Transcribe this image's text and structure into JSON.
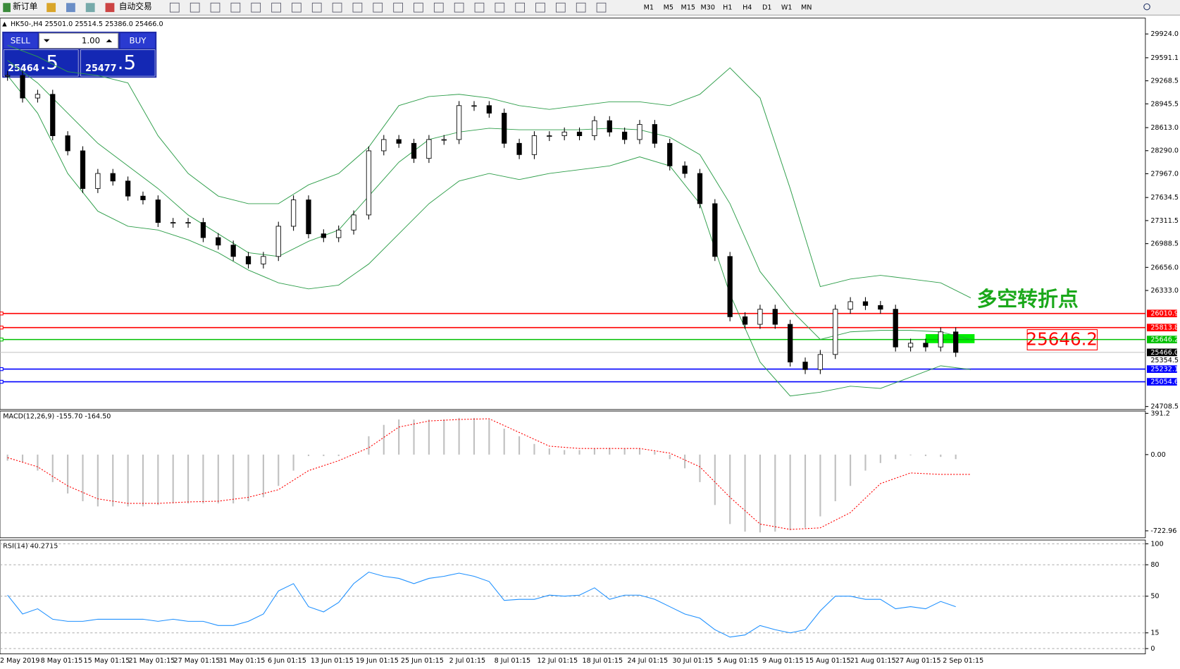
{
  "toolbar": {
    "new_order": "新订单",
    "auto_trade": "自动交易",
    "timeframes": [
      "M1",
      "M5",
      "M15",
      "M30",
      "H1",
      "H4",
      "D1",
      "W1",
      "MN"
    ]
  },
  "chart": {
    "header": "HK50-,H4  25501.0 25514.5 25386.0 25466.0",
    "trade_panel": {
      "sell": "SELL",
      "lot": "1.00",
      "buy": "BUY",
      "sell_big": "25464",
      "sell_small": ".5",
      "buy_big": "25477",
      "buy_small": ".5"
    },
    "price_axis": {
      "ylim": [
        24666,
        30146
      ],
      "ticks": [
        {
          "value": 29924,
          "label": "29924.0"
        },
        29591.1,
        29268.5,
        28945.5,
        {
          "value": 28613,
          "label": "28613.0"
        },
        {
          "value": 28290,
          "label": "28290.0"
        },
        {
          "value": 27967,
          "label": "27967.0"
        },
        27634.5,
        27311.5,
        26988.5,
        {
          "value": 26656,
          "label": "26656.0"
        },
        {
          "value": 26333,
          "label": "26333.0"
        },
        24708.5
      ]
    },
    "time_labels": [
      "2 May 2019",
      "8 May 01:15",
      "15 May 01:15",
      "21 May 01:15",
      "27 May 01:15",
      "31 May 01:15",
      "6 Jun 01:15",
      "13 Jun 01:15",
      "19 Jun 01:15",
      "25 Jun 01:15",
      "2 Jul 01:15",
      "8 Jul 01:15",
      "12 Jul 01:15",
      "18 Jul 01:15",
      "24 Jul 01:15",
      "30 Jul 01:15",
      "5 Aug 01:15",
      "9 Aug 01:15",
      "15 Aug 01:15",
      "21 Aug 01:15",
      "27 Aug 01:15",
      "2 Sep 01:15"
    ],
    "candles": {
      "close": [
        29343,
        29027,
        29079,
        28499,
        28288,
        27760,
        27971,
        27865,
        27654,
        27601,
        27285,
        27285,
        27285,
        27073,
        26968,
        26809,
        26704,
        26809,
        27232,
        27601,
        27126,
        27073,
        27179,
        27390,
        28288,
        28446,
        28393,
        28182,
        28446,
        28446,
        28921,
        28921,
        28815,
        28393,
        28235,
        28499,
        28499,
        28551,
        28499,
        28710,
        28551,
        28446,
        28657,
        28393,
        28077,
        27971,
        27548,
        26809,
        25965,
        25859,
        26070,
        25859,
        25331,
        25226,
        25437,
        26070,
        26176,
        26123,
        26070,
        25542,
        25595,
        25542,
        25753,
        25466
      ]
    },
    "bollinger": {
      "color": "#2e9e4a",
      "upper": [
        29766,
        29607,
        29396,
        29343,
        29238,
        28499,
        27971,
        27654,
        27548,
        27548,
        27812,
        27971,
        28340,
        28921,
        29048,
        29079,
        29027,
        28921,
        28868,
        28921,
        28974,
        28974,
        28921,
        29079,
        29449,
        29027,
        27760,
        26387,
        26493,
        26545,
        26493,
        26440,
        26229
      ],
      "middle": [
        29554,
        29238,
        28815,
        28393,
        28077,
        27760,
        27390,
        27126,
        26862,
        26809,
        27021,
        27179,
        27654,
        28129,
        28446,
        28551,
        28604,
        28583,
        28583,
        28583,
        28604,
        28583,
        28478,
        28235,
        27548,
        26598,
        26070,
        25648,
        25754,
        25775,
        25775,
        25754,
        25648
      ],
      "lower": [
        29343,
        28815,
        27971,
        27443,
        27232,
        27179,
        27042,
        26862,
        26619,
        26440,
        26355,
        26408,
        26704,
        27126,
        27548,
        27865,
        27971,
        27886,
        27971,
        28024,
        28077,
        28203,
        28077,
        27548,
        26282,
        25331,
        24856,
        24909,
        24993,
        24962,
        25120,
        25279,
        25226
      ]
    },
    "levels": [
      {
        "value": 26010.9,
        "color": "#ff0000"
      },
      {
        "value": 25813.8,
        "color": "#ff0000"
      },
      {
        "value": 25646.2,
        "color": "#00c000"
      },
      {
        "value": 25232.1,
        "color": "#0000ff"
      },
      {
        "value": 25054.6,
        "color": "#0000ff"
      }
    ],
    "current": {
      "value": 25466,
      "label": "25466.0"
    },
    "ask_mark": 25354.5,
    "annotation": "多空转折点"
  },
  "macd": {
    "header": "MACD(12,26,9) -155.70 -164.50",
    "ylim": [
      -789,
      413
    ],
    "ticks": [
      391.2,
      {
        "value": 0,
        "label": "0.00"
      },
      -722.96
    ],
    "hist_color": "#c0c0c0",
    "signal_color": "#ff0000",
    "hist": [
      -58,
      -72,
      -152,
      -261,
      -369,
      -442,
      -492,
      -492,
      -492,
      -492,
      -478,
      -463,
      -463,
      -463,
      -463,
      -463,
      -442,
      -405,
      -297,
      -152,
      -14,
      -14,
      -14,
      0,
      174,
      282,
      333,
      333,
      333,
      333,
      348,
      348,
      333,
      246,
      174,
      101,
      58,
      43,
      43,
      58,
      65,
      58,
      58,
      29,
      -43,
      -130,
      -261,
      -478,
      -659,
      -731,
      -738,
      -731,
      -717,
      -695,
      -586,
      -442,
      -297,
      -152,
      -80,
      -43,
      -7,
      -14,
      -22,
      -43
    ],
    "signal": [
      -29,
      -116,
      -297,
      -420,
      -463,
      -463,
      -449,
      -442,
      -405,
      -333,
      -152,
      -58,
      65,
      261,
      319,
      333,
      340,
      210,
      80,
      58,
      58,
      58,
      14,
      -116,
      -405,
      -659,
      -710,
      -695,
      -550,
      -275,
      -174,
      -188,
      -188
    ]
  },
  "rsi": {
    "header": "RSI(14) 40.2715",
    "ylim": [
      -5.1,
      103.6
    ],
    "ticks": [
      100,
      80,
      50,
      15,
      0
    ],
    "color": "#1e90ff",
    "values": [
      51,
      33,
      38,
      28,
      26,
      26,
      28,
      28,
      28,
      28,
      26,
      28,
      26,
      26,
      22,
      22,
      26,
      33,
      55,
      62,
      40,
      35,
      44,
      62,
      73,
      69,
      67,
      62,
      67,
      69,
      72,
      69,
      64,
      46,
      47,
      47,
      51,
      50,
      51,
      58,
      47,
      51,
      51,
      47,
      40,
      33,
      29,
      18,
      11,
      13,
      22,
      18,
      15,
      18,
      36,
      50,
      50,
      47,
      47,
      38,
      40,
      38,
      45,
      40
    ]
  }
}
